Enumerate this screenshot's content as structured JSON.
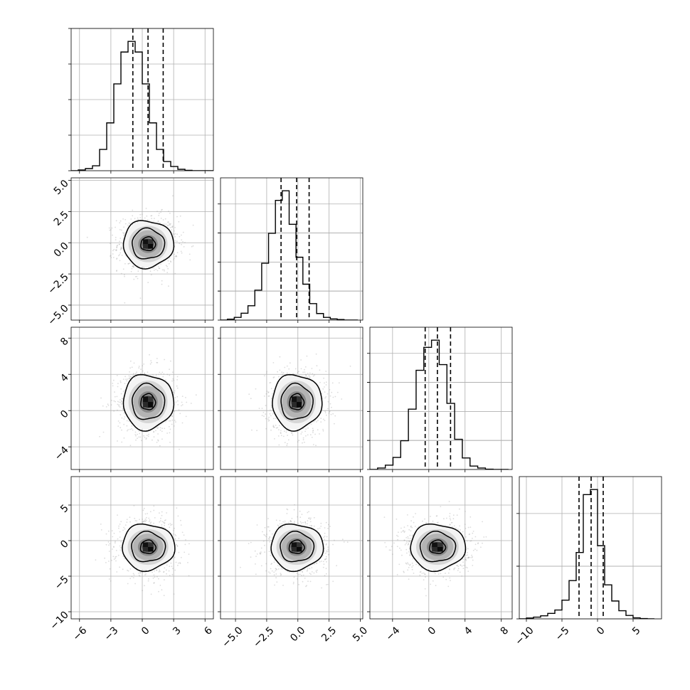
{
  "chart_data": {
    "type": "corner",
    "parameters": 4,
    "grid": true,
    "ranges": [
      [
        -6.8,
        6.8
      ],
      [
        -6.2,
        5.2
      ],
      [
        -6.5,
        9.2
      ],
      [
        -11.0,
        9.0
      ]
    ],
    "ticks": [
      [
        -6,
        -3,
        0,
        3,
        6
      ],
      [
        -5.0,
        -2.5,
        0.0,
        2.5,
        5.0
      ],
      [
        -4,
        0,
        4,
        8
      ],
      [
        -10,
        -5,
        0,
        5
      ]
    ],
    "tick_labels": [
      [
        "−6",
        "−3",
        "0",
        "3",
        "6"
      ],
      [
        "−5.0",
        "−2.5",
        "0.0",
        "2.5",
        "5.0"
      ],
      [
        "−4",
        "0",
        "4",
        "8"
      ],
      [
        "−10",
        "−5",
        "0",
        "5"
      ]
    ],
    "diag_y_tick_counts": [
      5,
      4,
      4,
      2
    ],
    "histograms": [
      {
        "bin_edges": [
          -6.8,
          -6.12,
          -5.44,
          -4.76,
          -4.08,
          -3.4,
          -2.72,
          -2.04,
          -1.36,
          -0.68,
          0.0,
          0.68,
          1.36,
          2.04,
          2.72,
          3.4,
          4.08,
          4.76,
          5.44,
          6.12,
          6.8
        ],
        "counts": [
          0,
          2,
          6,
          14,
          60,
          135,
          245,
          335,
          365,
          335,
          245,
          135,
          60,
          26,
          12,
          4,
          1,
          0,
          0,
          0
        ],
        "quantiles": [
          -0.9,
          0.55,
          2.0
        ]
      },
      {
        "bin_edges": [
          -6.2,
          -5.65,
          -5.1,
          -4.55,
          -4.0,
          -3.45,
          -2.9,
          -2.35,
          -1.8,
          -1.25,
          -0.7,
          -0.15,
          0.4,
          0.95,
          1.5,
          2.05,
          2.6,
          3.15,
          3.7,
          4.25,
          4.8
        ],
        "counts": [
          0,
          3,
          9,
          23,
          48,
          100,
          190,
          290,
          400,
          432,
          320,
          210,
          120,
          55,
          22,
          9,
          4,
          2,
          0,
          0
        ],
        "quantiles": [
          -1.35,
          -0.1,
          0.9
        ]
      },
      {
        "bin_edges": [
          -6.5,
          -5.65,
          -4.8,
          -3.95,
          -3.1,
          -2.25,
          -1.4,
          -0.55,
          0.3,
          1.15,
          2.0,
          2.85,
          3.7,
          4.55,
          5.4,
          6.25,
          7.1,
          7.95,
          8.8
        ],
        "counts": [
          0,
          5,
          15,
          42,
          100,
          210,
          345,
          425,
          450,
          365,
          230,
          105,
          40,
          12,
          5,
          1,
          0,
          0
        ],
        "quantiles": [
          -0.4,
          0.95,
          2.4
        ]
      },
      {
        "bin_edges": [
          -11.0,
          -10.0,
          -9.0,
          -8.0,
          -7.0,
          -6.0,
          -5.0,
          -4.0,
          -3.0,
          -2.0,
          -1.0,
          0.0,
          1.0,
          2.0,
          3.0,
          4.0,
          5.0,
          6.0,
          7.0,
          8.0
        ],
        "counts": [
          0,
          5,
          10,
          18,
          32,
          52,
          110,
          225,
          390,
          730,
          760,
          430,
          200,
          105,
          48,
          20,
          6,
          2,
          0
        ],
        "quantiles": [
          -2.6,
          -0.9,
          0.8
        ]
      }
    ],
    "pairs": [
      {
        "row": 1,
        "col": 0,
        "center": [
          0.55,
          -0.1
        ],
        "spread": [
          1.15,
          0.9
        ],
        "levels": [
          0.45,
          1.0,
          1.55
        ]
      },
      {
        "row": 2,
        "col": 0,
        "center": [
          0.55,
          0.95
        ],
        "spread": [
          1.15,
          1.45
        ],
        "levels": [
          0.45,
          1.0,
          1.55
        ]
      },
      {
        "row": 2,
        "col": 1,
        "center": [
          -0.1,
          0.95
        ],
        "spread": [
          0.95,
          1.45
        ],
        "levels": [
          0.45,
          1.0,
          1.55
        ]
      },
      {
        "row": 3,
        "col": 0,
        "center": [
          0.55,
          -0.9
        ],
        "spread": [
          1.2,
          1.55
        ],
        "levels": [
          0.45,
          1.0,
          1.55
        ]
      },
      {
        "row": 3,
        "col": 1,
        "center": [
          -0.1,
          -0.9
        ],
        "spread": [
          1.0,
          1.55
        ],
        "levels": [
          0.45,
          1.0,
          1.55
        ]
      },
      {
        "row": 3,
        "col": 2,
        "center": [
          0.95,
          -0.9
        ],
        "spread": [
          1.45,
          1.55
        ],
        "levels": [
          0.45,
          1.0,
          1.55
        ]
      }
    ],
    "colors": {
      "hist": "#000000",
      "points": "#9a9a9a",
      "grid": "#b0b0b0"
    }
  }
}
